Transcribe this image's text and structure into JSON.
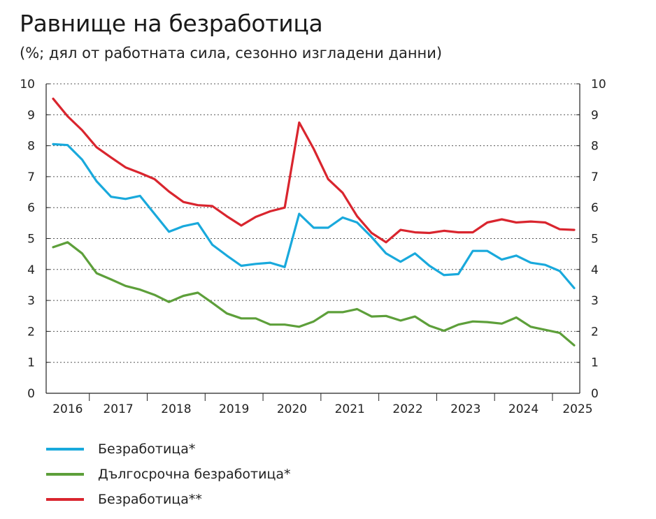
{
  "title": "Равнище на безработица",
  "subtitle": "(%; дял от работната сила, сезонно изгладени данни)",
  "chart_data": {
    "type": "line",
    "ylim": [
      0,
      10
    ],
    "yticks": [
      "0",
      "1",
      "2",
      "3",
      "4",
      "5",
      "6",
      "7",
      "8",
      "9",
      "10"
    ],
    "year_labels": [
      "2016",
      "2017",
      "2018",
      "2019",
      "2020",
      "2021",
      "2022",
      "2023",
      "2024",
      "2025"
    ],
    "grid": true,
    "series": [
      {
        "name": "Безработица*",
        "color": "#19a9dc",
        "values": [
          8.05,
          8.02,
          7.55,
          6.85,
          6.35,
          6.28,
          6.38,
          5.8,
          5.22,
          5.4,
          5.5,
          4.8,
          4.45,
          4.12,
          4.18,
          4.22,
          4.08,
          5.8,
          5.35,
          5.35,
          5.68,
          5.52,
          5.05,
          4.52,
          4.25,
          4.52,
          4.12,
          3.82,
          3.85,
          4.6,
          4.6,
          4.32,
          4.45,
          4.22,
          4.15,
          3.95,
          3.4
        ]
      },
      {
        "name": "Дългосрочна безработица*",
        "color": "#5d9f3a",
        "values": [
          4.72,
          4.88,
          4.52,
          3.88,
          3.68,
          3.47,
          3.35,
          3.18,
          2.95,
          3.15,
          3.25,
          2.92,
          2.58,
          2.42,
          2.42,
          2.22,
          2.22,
          2.15,
          2.32,
          2.62,
          2.62,
          2.72,
          2.48,
          2.5,
          2.35,
          2.48,
          2.18,
          2.02,
          2.22,
          2.32,
          2.3,
          2.25,
          2.45,
          2.15,
          2.05,
          1.95,
          1.55
        ]
      },
      {
        "name": "Безработица**",
        "color": "#d9252e",
        "values": [
          9.52,
          8.95,
          8.5,
          7.95,
          7.62,
          7.3,
          7.12,
          6.92,
          6.52,
          6.18,
          6.08,
          6.05,
          5.72,
          5.42,
          5.7,
          5.88,
          6.0,
          8.75,
          7.9,
          6.92,
          6.48,
          5.72,
          5.18,
          4.88,
          5.28,
          5.2,
          5.18,
          5.25,
          5.2,
          5.2,
          5.52,
          5.62,
          5.52,
          5.55,
          5.52,
          5.3,
          5.28
        ]
      }
    ]
  }
}
